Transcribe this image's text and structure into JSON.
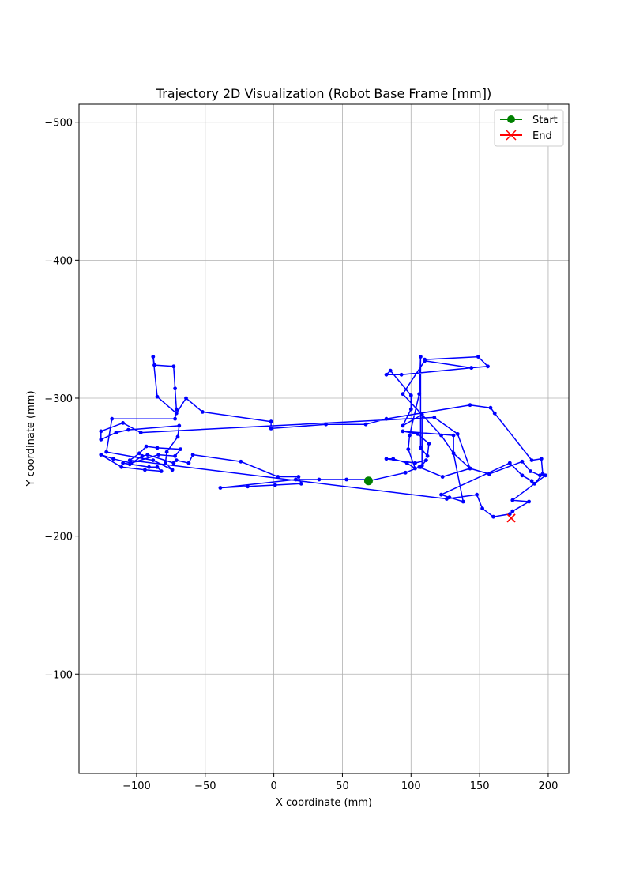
{
  "chart_data": {
    "type": "line",
    "title": "Trajectory 2D Visualization (Robot Base Frame [mm])",
    "xlabel": "X coordinate (mm)",
    "ylabel": "Y coordinate (mm)",
    "xlim": [
      -142,
      215
    ],
    "ylim": [
      -513,
      -28
    ],
    "y_inverted": true,
    "grid": true,
    "xticks": [
      -100,
      -50,
      0,
      50,
      100,
      150,
      200
    ],
    "yticks": [
      -500,
      -400,
      -300,
      -200,
      -100
    ],
    "legend": {
      "placement": "top-right",
      "entries": [
        {
          "label": "Start",
          "marker": "circle",
          "color": "#008000"
        },
        {
          "label": "End",
          "marker": "x",
          "color": "#ff0000"
        }
      ]
    },
    "series": [
      {
        "color": "#0000ff",
        "points": [
          [
            69,
            -240
          ],
          [
            96,
            -246
          ],
          [
            106,
            -250
          ],
          [
            123,
            -243
          ],
          [
            143,
            -249
          ],
          [
            134,
            -274
          ],
          [
            117,
            -286
          ],
          [
            -97,
            -275
          ],
          [
            -110,
            -282
          ],
          [
            -126,
            -276
          ],
          [
            -126,
            -270
          ],
          [
            -115,
            -275
          ],
          [
            -106,
            -277
          ],
          [
            -69,
            -280
          ],
          [
            -70,
            -272
          ],
          [
            -78,
            -261
          ],
          [
            -79,
            -253
          ],
          [
            -74,
            -248
          ],
          [
            -88,
            -255
          ],
          [
            -122,
            -261
          ],
          [
            -118,
            -285
          ],
          [
            -72,
            -285
          ],
          [
            -71,
            -292
          ],
          [
            -72,
            -307
          ],
          [
            -73,
            -323
          ],
          [
            -87,
            -324
          ],
          [
            -88,
            -330
          ],
          [
            -85,
            -301
          ],
          [
            -71,
            -289
          ],
          [
            -64,
            -300
          ],
          [
            -52,
            -290
          ],
          [
            -2,
            -283
          ],
          [
            -2,
            -278
          ],
          [
            38,
            -281
          ],
          [
            67,
            -281
          ],
          [
            82,
            -285
          ],
          [
            143,
            -295
          ],
          [
            158,
            -293
          ],
          [
            161,
            -289
          ],
          [
            188,
            -255
          ],
          [
            195,
            -256
          ],
          [
            196,
            -245
          ],
          [
            194,
            -244
          ],
          [
            187,
            -247
          ],
          [
            181,
            -254
          ],
          [
            157,
            -245
          ],
          [
            143,
            -249
          ],
          [
            131,
            -260
          ],
          [
            122,
            -273
          ],
          [
            94,
            -303
          ],
          [
            110,
            -327
          ],
          [
            144,
            -322
          ],
          [
            156,
            -323
          ],
          [
            149,
            -330
          ],
          [
            110,
            -328
          ],
          [
            110,
            -327
          ],
          [
            144,
            -322
          ],
          [
            93,
            -317
          ],
          [
            82,
            -317
          ],
          [
            85,
            -320
          ],
          [
            100,
            -302
          ],
          [
            100,
            -292
          ],
          [
            94,
            -280
          ],
          [
            108,
            -288
          ],
          [
            108,
            -251
          ],
          [
            107,
            -250
          ],
          [
            111,
            -255
          ],
          [
            103,
            -253
          ],
          [
            82,
            -256
          ],
          [
            87,
            -256
          ],
          [
            97,
            -253
          ],
          [
            103,
            -249
          ],
          [
            98,
            -263
          ],
          [
            99,
            -273
          ],
          [
            106,
            -303
          ],
          [
            107,
            -330
          ],
          [
            107,
            -264
          ],
          [
            112,
            -258
          ],
          [
            113,
            -267
          ],
          [
            105,
            -274
          ],
          [
            94,
            -276
          ],
          [
            131,
            -273
          ],
          [
            131,
            -260
          ],
          [
            138,
            -225
          ],
          [
            128,
            -228
          ],
          [
            122,
            -230
          ],
          [
            172,
            -253
          ],
          [
            181,
            -244
          ],
          [
            188,
            -240
          ],
          [
            190,
            -238
          ],
          [
            196,
            -245
          ],
          [
            198,
            -244
          ],
          [
            174,
            -226
          ],
          [
            186,
            -225
          ],
          [
            174,
            -218
          ],
          [
            172,
            -216
          ],
          [
            160,
            -214
          ],
          [
            152,
            -220
          ],
          [
            148,
            -230
          ],
          [
            126,
            -227
          ],
          [
            -105,
            -255
          ],
          [
            -98,
            -260
          ],
          [
            -93,
            -265
          ],
          [
            -85,
            -264
          ],
          [
            -68,
            -263
          ],
          [
            -72,
            -258
          ],
          [
            -84,
            -259
          ],
          [
            -104,
            -253
          ],
          [
            -117,
            -256
          ],
          [
            -126,
            -259
          ],
          [
            -111,
            -250
          ],
          [
            -94,
            -248
          ],
          [
            -82,
            -247
          ],
          [
            -85,
            -250
          ],
          [
            -91,
            -250
          ],
          [
            -110,
            -253
          ],
          [
            -105,
            -252
          ],
          [
            -96,
            -258
          ],
          [
            -92,
            -259
          ],
          [
            -73,
            -253
          ],
          [
            -71,
            -255
          ],
          [
            -62,
            -253
          ],
          [
            -59,
            -259
          ],
          [
            -24,
            -254
          ],
          [
            3,
            -243
          ],
          [
            18,
            -243
          ],
          [
            20,
            -238
          ],
          [
            1,
            -237
          ],
          [
            -19,
            -236
          ],
          [
            -39,
            -235
          ],
          [
            16,
            -241
          ],
          [
            33,
            -241
          ],
          [
            53,
            -241
          ],
          [
            68,
            -241
          ],
          [
            69,
            -240
          ]
        ]
      }
    ],
    "start": [
      69,
      -240
    ],
    "end": [
      173,
      -213
    ]
  }
}
